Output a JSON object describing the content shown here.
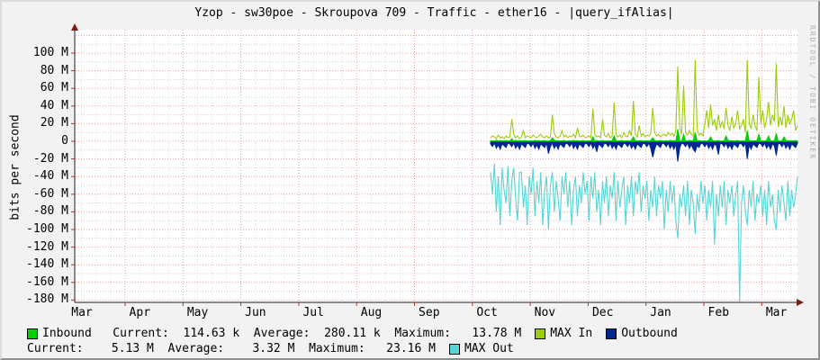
{
  "watermark": "RRDTOOL / TOBI OETIKER",
  "legend": {
    "row1": {
      "stats": "Inbound   Current:  114.63 k  Average:  280.11 k  Maximum:   13.78 M",
      "max_in_label": "MAX In",
      "outbound_label": "Outbound"
    },
    "row2": {
      "stats": "Current:    5.13 M  Average:    3.32 M  Maximum:   23.16 M",
      "max_out_label": "MAX Out"
    }
  },
  "chart_data": {
    "type": "line",
    "title": "Yzop - sw30poe - Skroupova 709 - Traffic - ether16 - |query_ifAlias|",
    "ylabel": "bits per second",
    "y_unit": "M bits/s",
    "ylim": [
      -190,
      125
    ],
    "y_major_step": 20,
    "grid": true,
    "legend_position": "bottom",
    "x_ticks": [
      "Mar",
      "Apr",
      "May",
      "Jun",
      "Jul",
      "Aug",
      "Sep",
      "Oct",
      "Nov",
      "Dec",
      "Jan",
      "Feb",
      "Mar"
    ],
    "y_ticks": [
      {
        "v": 100,
        "label": "100 M"
      },
      {
        "v": 80,
        "label": "80 M"
      },
      {
        "v": 60,
        "label": "60 M"
      },
      {
        "v": 40,
        "label": "40 M"
      },
      {
        "v": 20,
        "label": "20 M"
      },
      {
        "v": 0,
        "label": "0"
      },
      {
        "v": -20,
        "label": "-20 M"
      },
      {
        "v": -40,
        "label": "-40 M"
      },
      {
        "v": -60,
        "label": "-60 M"
      },
      {
        "v": -80,
        "label": "-80 M"
      },
      {
        "v": -100,
        "label": "-100 M"
      },
      {
        "v": -120,
        "label": "-120 M"
      },
      {
        "v": -140,
        "label": "-140 M"
      },
      {
        "v": -160,
        "label": "-160 M"
      },
      {
        "v": -180,
        "label": "-180 M"
      }
    ],
    "data_start_note": "data present only from mid-Oct to end of x-range",
    "colors": {
      "background": "#f2f2f2",
      "plot_background": "#ffffff",
      "major_grid": "#f29c9c",
      "minor_grid_h": "#dfc4c4",
      "minor_grid_v": "#dcdcdc",
      "axis": "#222222",
      "arrow": "#7f1c12",
      "watermark": "#aeaeae"
    },
    "series": [
      {
        "name": "Inbound",
        "color": "#00CF00",
        "style": "area",
        "values": [
          0.4,
          0.8,
          0.3,
          1.2,
          0.5,
          0.9,
          0.4,
          0.6,
          1.0,
          0.3,
          0.4,
          3,
          0.3,
          1.2,
          0.5,
          0.9,
          0.4,
          0.6,
          1.0,
          0.3,
          0.4,
          0.8,
          0.3,
          1.2,
          0.5,
          0.9,
          0.4,
          0.6,
          1.0,
          0.3,
          0.4,
          0.8,
          4,
          1.2,
          0.5,
          0.9,
          0.4,
          0.6,
          1.0,
          0.3,
          0.4,
          0.8,
          0.3,
          1.2,
          0.5,
          0.9,
          0.4,
          0.6,
          1.0,
          0.3,
          0.4,
          0.8,
          0.3,
          5,
          0.5,
          0.9,
          0.4,
          0.6,
          1.0,
          0.3,
          0.4,
          0.8,
          0.3,
          1.2,
          6,
          0.9,
          0.4,
          0.6,
          1.0,
          0.3,
          0.4,
          0.8,
          0.3,
          1.2,
          5,
          0.9,
          0.4,
          0.6,
          1.0,
          0.3,
          0.4,
          0.8,
          0.3,
          1.2,
          4,
          0.9,
          0.4,
          0.6,
          1.0,
          0.3,
          0.4,
          0.8,
          0.3,
          1.2,
          0.5,
          0.9,
          0.4,
          13.8,
          1.0,
          0.3,
          8,
          0.8,
          0.3,
          1.2,
          0.5,
          0.9,
          10,
          0.6,
          1.0,
          0.3,
          0.4,
          0.8,
          0.3,
          1.2,
          5,
          0.9,
          0.4,
          0.6,
          1.0,
          0.3,
          0.4,
          0.8,
          6,
          1.2,
          0.5,
          0.9,
          0.4,
          0.6,
          1.0,
          0.3,
          0.4,
          0.8,
          0.3,
          12,
          0.5,
          0.9,
          0.4,
          0.6,
          1.0,
          8,
          0.4,
          0.8,
          0.3,
          1.2,
          6,
          0.9,
          0.4,
          0.6,
          9,
          0.3,
          0.4,
          0.8,
          5,
          1.2,
          0.5,
          0.9,
          0.4,
          0.6,
          1.0,
          0.3
        ]
      },
      {
        "name": "MAX In",
        "color": "#9CCC0C",
        "style": "line",
        "values": [
          4,
          6,
          5,
          3,
          7,
          4,
          5,
          3,
          6,
          4,
          5,
          25,
          8,
          4,
          6,
          3,
          5,
          12,
          4,
          6,
          5,
          4,
          7,
          5,
          4,
          6,
          8,
          5,
          4,
          6,
          4,
          5,
          30,
          9,
          5,
          4,
          6,
          12,
          5,
          7,
          4,
          6,
          5,
          8,
          4,
          15,
          6,
          5,
          7,
          4,
          5,
          6,
          4,
          37,
          8,
          5,
          6,
          4,
          25,
          7,
          5,
          9,
          4,
          6,
          44,
          8,
          5,
          7,
          4,
          10,
          6,
          5,
          12,
          6,
          46,
          8,
          5,
          18,
          6,
          9,
          5,
          7,
          6,
          9,
          38,
          10,
          6,
          8,
          5,
          7,
          8,
          6,
          10,
          7,
          9,
          6,
          12,
          85,
          15,
          8,
          63,
          10,
          7,
          12,
          8,
          6,
          92,
          14,
          7,
          9,
          6,
          20,
          35,
          15,
          42,
          18,
          25,
          12,
          30,
          16,
          22,
          14,
          38,
          18,
          12,
          28,
          15,
          20,
          35,
          14,
          18,
          25,
          10,
          92,
          20,
          15,
          30,
          18,
          12,
          73,
          20,
          35,
          15,
          25,
          45,
          18,
          30,
          22,
          88,
          16,
          28,
          18,
          40,
          15,
          30,
          20,
          25,
          35,
          12,
          18
        ]
      },
      {
        "name": "Outbound",
        "color": "#00268F",
        "style": "area",
        "values": [
          -3,
          -6,
          -2,
          -8,
          -4,
          -9,
          -3,
          -5,
          -7,
          -2,
          -3,
          -6,
          -2,
          -8,
          -4,
          -9,
          -3,
          -5,
          -7,
          -2,
          -3,
          -6,
          -2,
          -8,
          -4,
          -9,
          -3,
          -5,
          -7,
          -2,
          -14,
          -6,
          -2,
          -8,
          -4,
          -9,
          -3,
          -5,
          -7,
          -2,
          -3,
          -6,
          -2,
          -8,
          -4,
          -9,
          -3,
          -5,
          -7,
          -2,
          -3,
          -6,
          -2,
          -8,
          -4,
          -12,
          -3,
          -5,
          -7,
          -2,
          -3,
          -6,
          -2,
          -8,
          -4,
          -9,
          -3,
          -5,
          -7,
          -2,
          -3,
          -6,
          -2,
          -8,
          -4,
          -9,
          -3,
          -5,
          -7,
          -2,
          -3,
          -6,
          -2,
          -8,
          -18,
          -9,
          -3,
          -5,
          -7,
          -2,
          -3,
          -6,
          -2,
          -8,
          -4,
          -9,
          -3,
          -23,
          -7,
          -2,
          -3,
          -6,
          -2,
          -8,
          -4,
          -9,
          -12,
          -5,
          -7,
          -2,
          -3,
          -6,
          -2,
          -8,
          -4,
          -9,
          -3,
          -5,
          -15,
          -2,
          -3,
          -6,
          -2,
          -8,
          -4,
          -9,
          -3,
          -5,
          -7,
          -2,
          -3,
          -6,
          -2,
          -20,
          -4,
          -9,
          -3,
          -5,
          -7,
          -2,
          -3,
          -6,
          -2,
          -8,
          -4,
          -9,
          -3,
          -5,
          -16,
          -2,
          -3,
          -6,
          -2,
          -8,
          -4,
          -9,
          -3,
          -5,
          -7,
          -2
        ]
      },
      {
        "name": "MAX Out",
        "color": "#55D6D6",
        "style": "line",
        "values": [
          -35,
          -60,
          -25,
          -80,
          -40,
          -95,
          -30,
          -55,
          -70,
          -28,
          -85,
          -45,
          -30,
          -65,
          -90,
          -35,
          -35,
          -75,
          -50,
          -95,
          -40,
          -60,
          -30,
          -85,
          -45,
          -70,
          -35,
          -95,
          -55,
          -40,
          -100,
          -50,
          -35,
          -80,
          -45,
          -65,
          -90,
          -40,
          -60,
          -35,
          -75,
          -45,
          -95,
          -55,
          -40,
          -85,
          -50,
          -70,
          -35,
          -60,
          -45,
          -90,
          -40,
          -65,
          -35,
          -80,
          -55,
          -95,
          -45,
          -70,
          -40,
          -85,
          -50,
          -65,
          -35,
          -90,
          -45,
          -75,
          -55,
          -40,
          -95,
          -50,
          -70,
          -40,
          -85,
          -45,
          -60,
          -35,
          -80,
          -50,
          -65,
          -45,
          -90,
          -55,
          -75,
          -40,
          -85,
          -50,
          -65,
          -45,
          -100,
          -55,
          -80,
          -45,
          -70,
          -50,
          -90,
          -110,
          -60,
          -75,
          -50,
          -85,
          -45,
          -95,
          -55,
          -70,
          -105,
          -60,
          -80,
          -45,
          -70,
          -50,
          -90,
          -55,
          -75,
          -45,
          -117,
          -60,
          -85,
          -50,
          -75,
          -45,
          -95,
          -55,
          -70,
          -50,
          -85,
          -60,
          -45,
          -182,
          -70,
          -50,
          -80,
          -95,
          -55,
          -75,
          -45,
          -90,
          -60,
          -70,
          -50,
          -85,
          -55,
          -95,
          -45,
          -75,
          -60,
          -90,
          -100,
          -55,
          -80,
          -50,
          -70,
          -90,
          -45,
          -85,
          -55,
          -75,
          -60,
          -40
        ]
      }
    ]
  }
}
